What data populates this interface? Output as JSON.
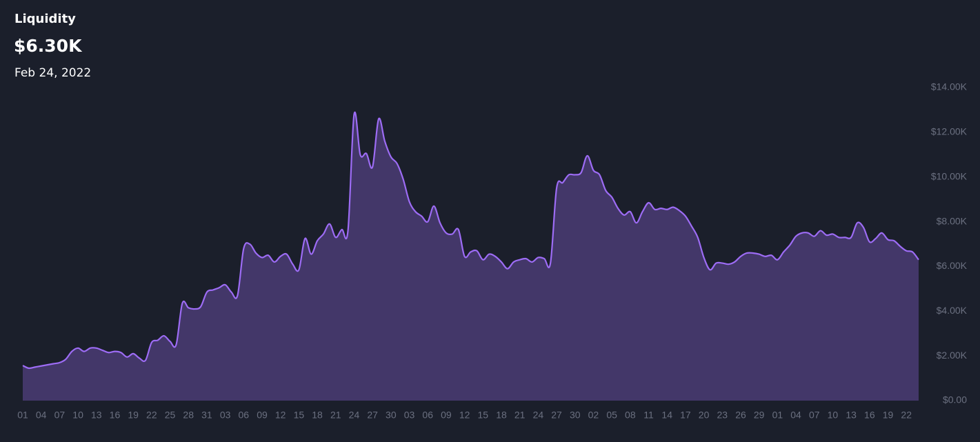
{
  "chart_data": {
    "type": "area",
    "title": "Liquidity",
    "current_value": "$6.30K",
    "date": "Feb 24, 2022",
    "line_color": "#9d6cf5",
    "fill_color": "#433769",
    "categories": [
      "01",
      null,
      null,
      "04",
      null,
      null,
      "07",
      null,
      null,
      "10",
      null,
      null,
      "13",
      null,
      null,
      "16",
      null,
      null,
      "19",
      null,
      null,
      "22",
      null,
      null,
      "25",
      null,
      null,
      "28",
      null,
      null,
      "31",
      null,
      null,
      "03",
      null,
      null,
      "06",
      null,
      null,
      "09",
      null,
      null,
      "12",
      null,
      null,
      "15",
      null,
      null,
      "18",
      null,
      null,
      "21",
      null,
      null,
      "24",
      null,
      null,
      "27",
      null,
      null,
      "30",
      null,
      null,
      "03",
      null,
      null,
      "06",
      null,
      null,
      "09",
      null,
      null,
      "12",
      null,
      null,
      "15",
      null,
      null,
      "18",
      null,
      null,
      "21",
      null,
      null,
      "24",
      null,
      null,
      "27",
      null,
      null,
      "30",
      null,
      null,
      "02",
      null,
      null,
      "05",
      null,
      null,
      "08",
      null,
      null,
      "11",
      null,
      null,
      "14",
      null,
      null,
      "17",
      null,
      null,
      "20",
      null,
      null,
      "23",
      null,
      null,
      "26",
      null,
      null,
      "29",
      null,
      null,
      "01",
      null,
      null,
      "04",
      null,
      null,
      "07",
      null,
      null,
      "10",
      null,
      null,
      "13",
      null,
      null,
      "16",
      null,
      null,
      "19",
      null,
      null,
      "22",
      null,
      null
    ],
    "values": [
      1570,
      1450,
      1500,
      1550,
      1600,
      1650,
      1700,
      1850,
      2200,
      2350,
      2200,
      2350,
      2350,
      2250,
      2150,
      2200,
      2150,
      1950,
      2100,
      1900,
      1800,
      2600,
      2700,
      2900,
      2650,
      2500,
      4350,
      4150,
      4100,
      4200,
      4850,
      4950,
      5050,
      5180,
      4850,
      4700,
      6800,
      7000,
      6600,
      6400,
      6500,
      6200,
      6450,
      6550,
      6100,
      5850,
      7250,
      6550,
      7150,
      7450,
      7900,
      7300,
      7650,
      7600,
      12800,
      11000,
      11050,
      10450,
      12600,
      11600,
      10900,
      10600,
      9900,
      8900,
      8450,
      8250,
      8000,
      8700,
      7950,
      7500,
      7450,
      7650,
      6450,
      6650,
      6700,
      6300,
      6550,
      6450,
      6200,
      5900,
      6200,
      6300,
      6350,
      6200,
      6400,
      6350,
      6150,
      9500,
      9750,
      10100,
      10100,
      10200,
      10950,
      10300,
      10100,
      9400,
      9100,
      8600,
      8300,
      8450,
      7950,
      8450,
      8850,
      8550,
      8600,
      8550,
      8650,
      8500,
      8250,
      7800,
      7300,
      6400,
      5850,
      6150,
      6150,
      6100,
      6200,
      6450,
      6600,
      6600,
      6550,
      6450,
      6500,
      6300,
      6650,
      6950,
      7350,
      7500,
      7500,
      7350,
      7600,
      7400,
      7450,
      7300,
      7300,
      7300,
      7950,
      7750,
      7100,
      7250,
      7500,
      7200,
      7150,
      6900,
      6700,
      6650,
      6300
    ],
    "ylim": [
      0,
      14000
    ],
    "yticks": [
      {
        "value": 0,
        "label": "$0.00"
      },
      {
        "value": 2000,
        "label": "$2.00K"
      },
      {
        "value": 4000,
        "label": "$4.00K"
      },
      {
        "value": 6000,
        "label": "$6.00K"
      },
      {
        "value": 8000,
        "label": "$8.00K"
      },
      {
        "value": 10000,
        "label": "$10.00K"
      },
      {
        "value": 12000,
        "label": "$12.00K"
      },
      {
        "value": 14000,
        "label": "$14.00K"
      }
    ]
  }
}
